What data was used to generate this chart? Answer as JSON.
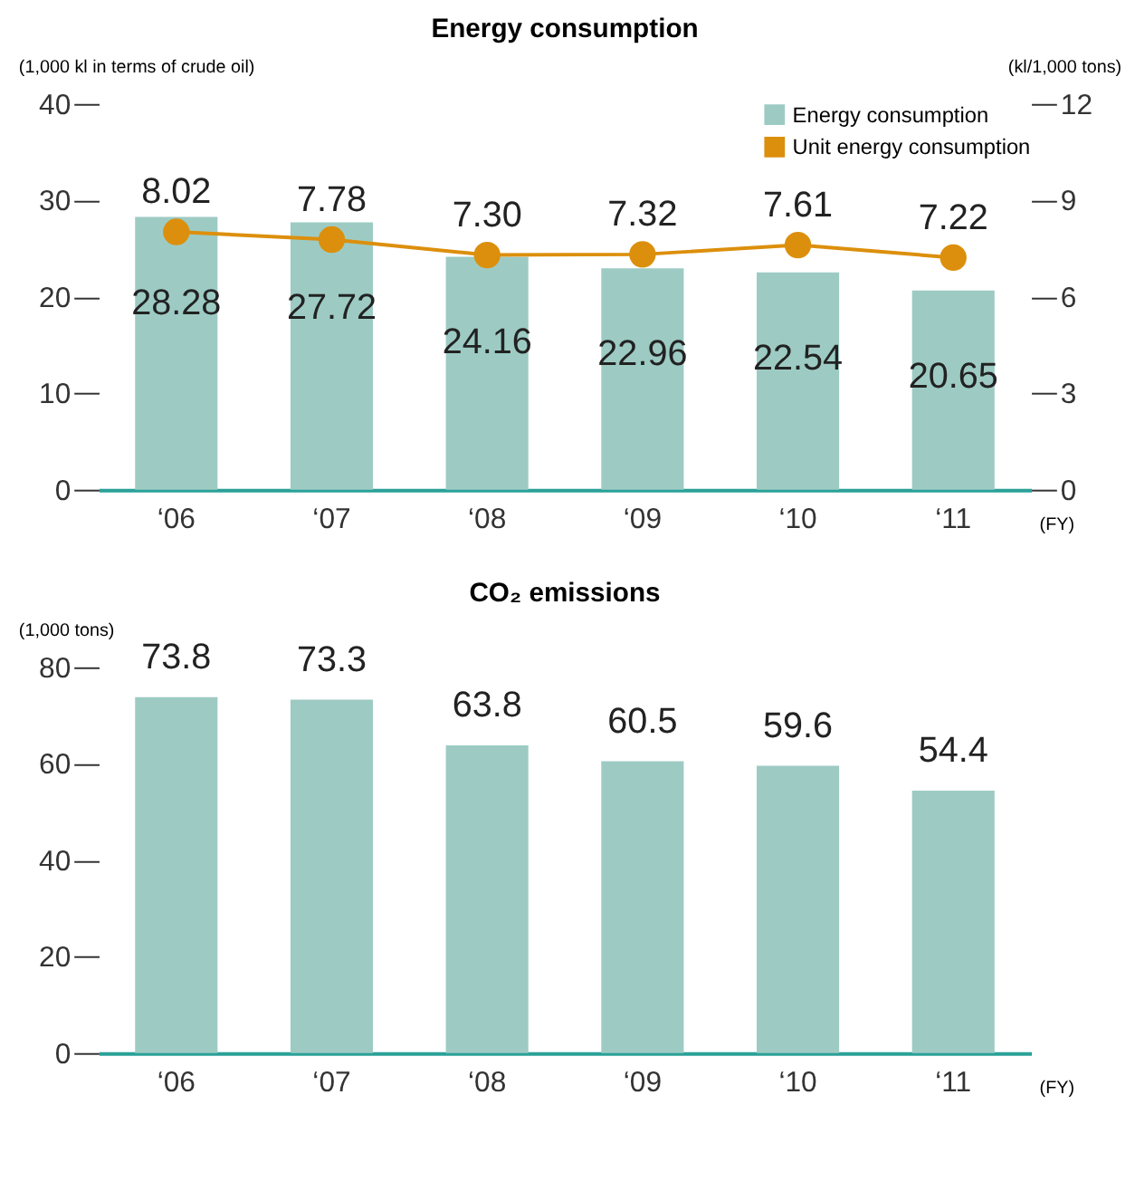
{
  "chart_data": [
    {
      "type": "bar",
      "title": "Energy consumption",
      "xlabel": "(FY)",
      "ylabel": "(1,000 kl in terms of crude oil)",
      "y2label": "(kl/1,000 tons)",
      "categories": [
        "‘06",
        "‘07",
        "‘08",
        "‘09",
        "‘10",
        "‘11"
      ],
      "series": [
        {
          "name": "Energy consumption",
          "type": "bar",
          "color": "#9dcbc4",
          "values": [
            28.28,
            27.72,
            24.16,
            22.96,
            22.54,
            20.65
          ],
          "value_labels": [
            "28.28",
            "27.72",
            "24.16",
            "22.96",
            "22.54",
            "20.65"
          ]
        },
        {
          "name": "Unit energy consumption",
          "type": "line",
          "axis": "y2",
          "color": "#dc8f0c",
          "marker": "circle",
          "values": [
            8.02,
            7.78,
            7.3,
            7.32,
            7.61,
            7.22
          ],
          "value_labels": [
            "8.02",
            "7.78",
            "7.30",
            "7.32",
            "7.61",
            "7.22"
          ]
        }
      ],
      "ylim": [
        0,
        40
      ],
      "yticks": [
        0,
        10,
        20,
        30,
        40
      ],
      "y2lim": [
        0,
        12
      ],
      "y2ticks": [
        0,
        3,
        6,
        9,
        12
      ],
      "legend": "top right",
      "grid": false
    },
    {
      "type": "bar",
      "title": "CO₂ emissions",
      "xlabel": "(FY)",
      "ylabel": "(1,000 tons)",
      "categories": [
        "‘06",
        "‘07",
        "‘08",
        "‘09",
        "‘10",
        "‘11"
      ],
      "values": [
        73.8,
        73.3,
        63.8,
        60.5,
        59.6,
        54.4
      ],
      "value_labels": [
        "73.8",
        "73.3",
        "63.8",
        "60.5",
        "59.6",
        "54.4"
      ],
      "color": "#9dcbc4",
      "ylim": [
        0,
        80
      ],
      "yticks": [
        0,
        20,
        40,
        60,
        80
      ],
      "grid": false
    }
  ]
}
